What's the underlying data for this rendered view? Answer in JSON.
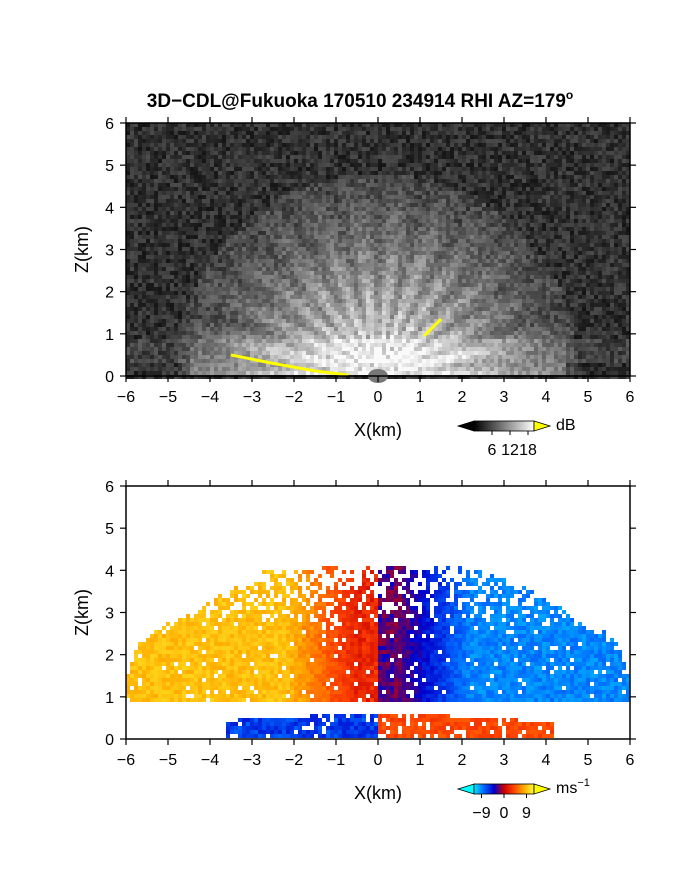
{
  "title": "3D−CDL@Fukuoka 170510 234914 RHI AZ=179",
  "title_superscript": "o",
  "chart_data": [
    {
      "type": "heatmap",
      "name": "backscatter",
      "xlabel": "X(km)",
      "ylabel": "Z(km)",
      "xlim": [
        -6,
        6
      ],
      "ylim": [
        0,
        6
      ],
      "x_ticks": [
        -6,
        -5,
        -4,
        -3,
        -2,
        -1,
        0,
        1,
        2,
        3,
        4,
        5,
        6
      ],
      "y_ticks": [
        0,
        1,
        2,
        3,
        4,
        5,
        6
      ],
      "x_tick_labels": [
        "−6",
        "−5",
        "−4",
        "−3",
        "−2",
        "−1",
        "0",
        "1",
        "2",
        "3",
        "4",
        "5",
        "6"
      ],
      "y_tick_labels": [
        "0",
        "1",
        "2",
        "3",
        "4",
        "5",
        "6"
      ],
      "colorbar": {
        "unit": "dB",
        "ticks": [
          6,
          12,
          18
        ],
        "tick_labels": [
          "6",
          "12",
          "18"
        ],
        "range": [
          0,
          20
        ],
        "colors": [
          "#000000",
          "#ffffff"
        ],
        "over_color": "#ffff00"
      },
      "overlay_segments": [
        {
          "color": "#ffff00",
          "points": [
            [
              -3.5,
              0.5
            ],
            [
              -2.5,
              0.3
            ],
            [
              -1.5,
              0.12
            ],
            [
              -0.7,
              0.02
            ]
          ]
        },
        {
          "color": "#ffff00",
          "points": [
            [
              1.1,
              0.95
            ],
            [
              1.5,
              1.35
            ]
          ]
        }
      ]
    },
    {
      "type": "heatmap",
      "name": "doppler-velocity",
      "xlabel": "X(km)",
      "ylabel": "Z(km)",
      "xlim": [
        -6,
        6
      ],
      "ylim": [
        0,
        6
      ],
      "x_ticks": [
        -6,
        -5,
        -4,
        -3,
        -2,
        -1,
        0,
        1,
        2,
        3,
        4,
        5,
        6
      ],
      "y_ticks": [
        0,
        1,
        2,
        3,
        4,
        5,
        6
      ],
      "x_tick_labels": [
        "−6",
        "−5",
        "−4",
        "−3",
        "−2",
        "−1",
        "0",
        "1",
        "2",
        "3",
        "4",
        "5",
        "6"
      ],
      "y_tick_labels": [
        "0",
        "1",
        "2",
        "3",
        "4",
        "5",
        "6"
      ],
      "colorbar": {
        "unit": "ms",
        "unit_superscript": "−1",
        "ticks": [
          -9,
          0,
          9
        ],
        "tick_labels": [
          "−9",
          "0",
          "9"
        ],
        "range": [
          -12,
          12
        ],
        "under_color": "#00ffff",
        "over_color": "#ffff00",
        "colors": [
          "#00e5ff",
          "#0066ff",
          "#0000cc",
          "#cc0000",
          "#ff4400",
          "#ffaa00",
          "#ffff33"
        ]
      }
    }
  ]
}
